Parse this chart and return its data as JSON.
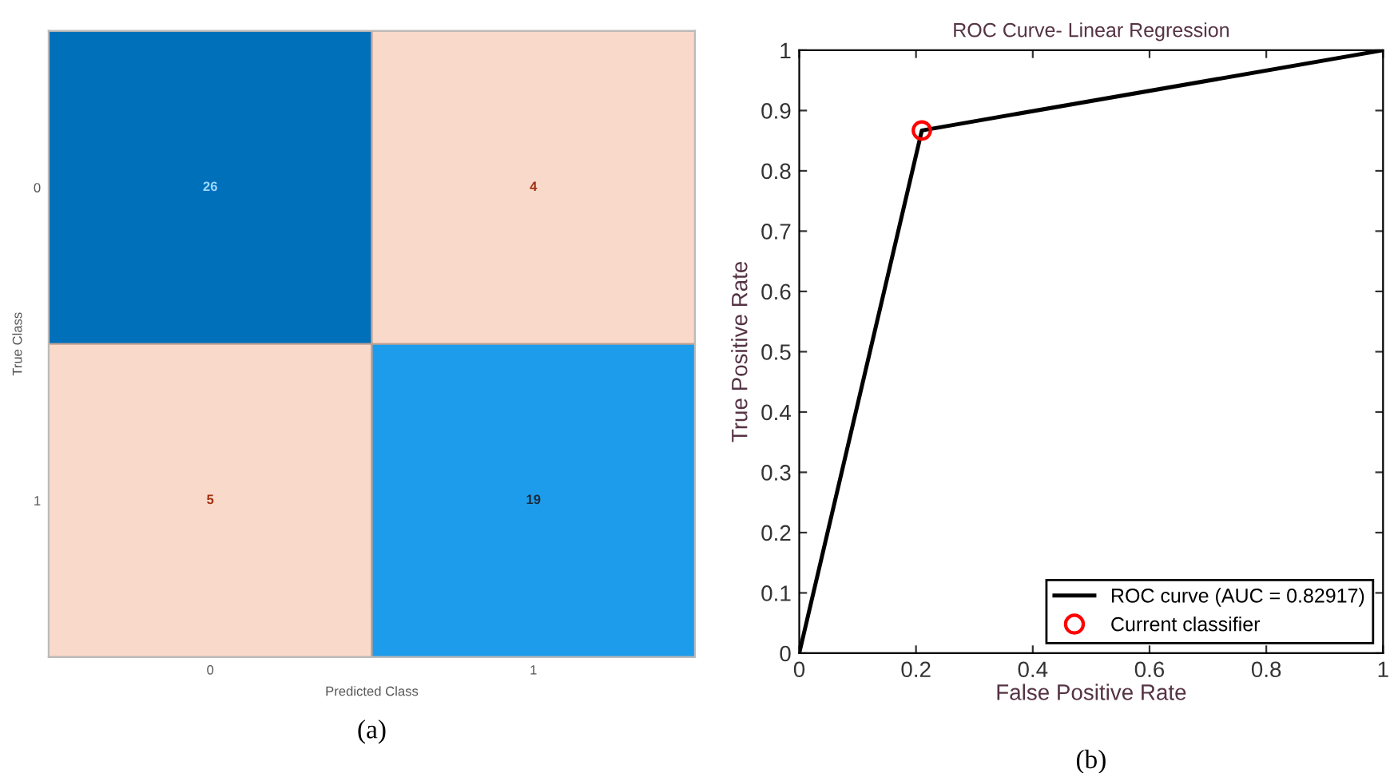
{
  "chart_data": [
    {
      "type": "heatmap",
      "xlabel": "Predicted Class",
      "ylabel": "True Class",
      "categories": [
        "0",
        "1"
      ],
      "y_categories": [
        "0",
        "1"
      ],
      "cells": [
        [
          26,
          4
        ],
        [
          5,
          19
        ]
      ],
      "colors": [
        [
          "#0070bb",
          "#f9d9c9"
        ],
        [
          "#f9d9c9",
          "#1e9cec"
        ]
      ],
      "data_labels": true,
      "annotations": [
        "(a)"
      ]
    },
    {
      "type": "line",
      "title": "ROC Curve- Linear Regression",
      "xlabel": "False Positive Rate",
      "ylabel": "True Positive Rate",
      "series": [
        {
          "name": "ROC curve (AUC = 0.82917)",
          "color": "#000000",
          "x": [
            0,
            0.21,
            1
          ],
          "values": [
            0,
            0.867,
            1
          ],
          "marker": "none"
        },
        {
          "name": "Current classifier",
          "type": "scatter",
          "color": "#ff0000",
          "x": [
            0.21
          ],
          "values": [
            0.867
          ],
          "marker": "circle"
        }
      ],
      "xlim": [
        0,
        1
      ],
      "ylim": [
        0,
        1
      ],
      "xticks": [
        0,
        0.2,
        0.4,
        0.6,
        0.8,
        1
      ],
      "yticks": [
        0,
        0.1,
        0.2,
        0.3,
        0.4,
        0.5,
        0.6,
        0.7,
        0.8,
        0.9,
        1
      ],
      "grid": false,
      "legend": "bottom right",
      "annotations": [
        "(b)"
      ]
    }
  ]
}
